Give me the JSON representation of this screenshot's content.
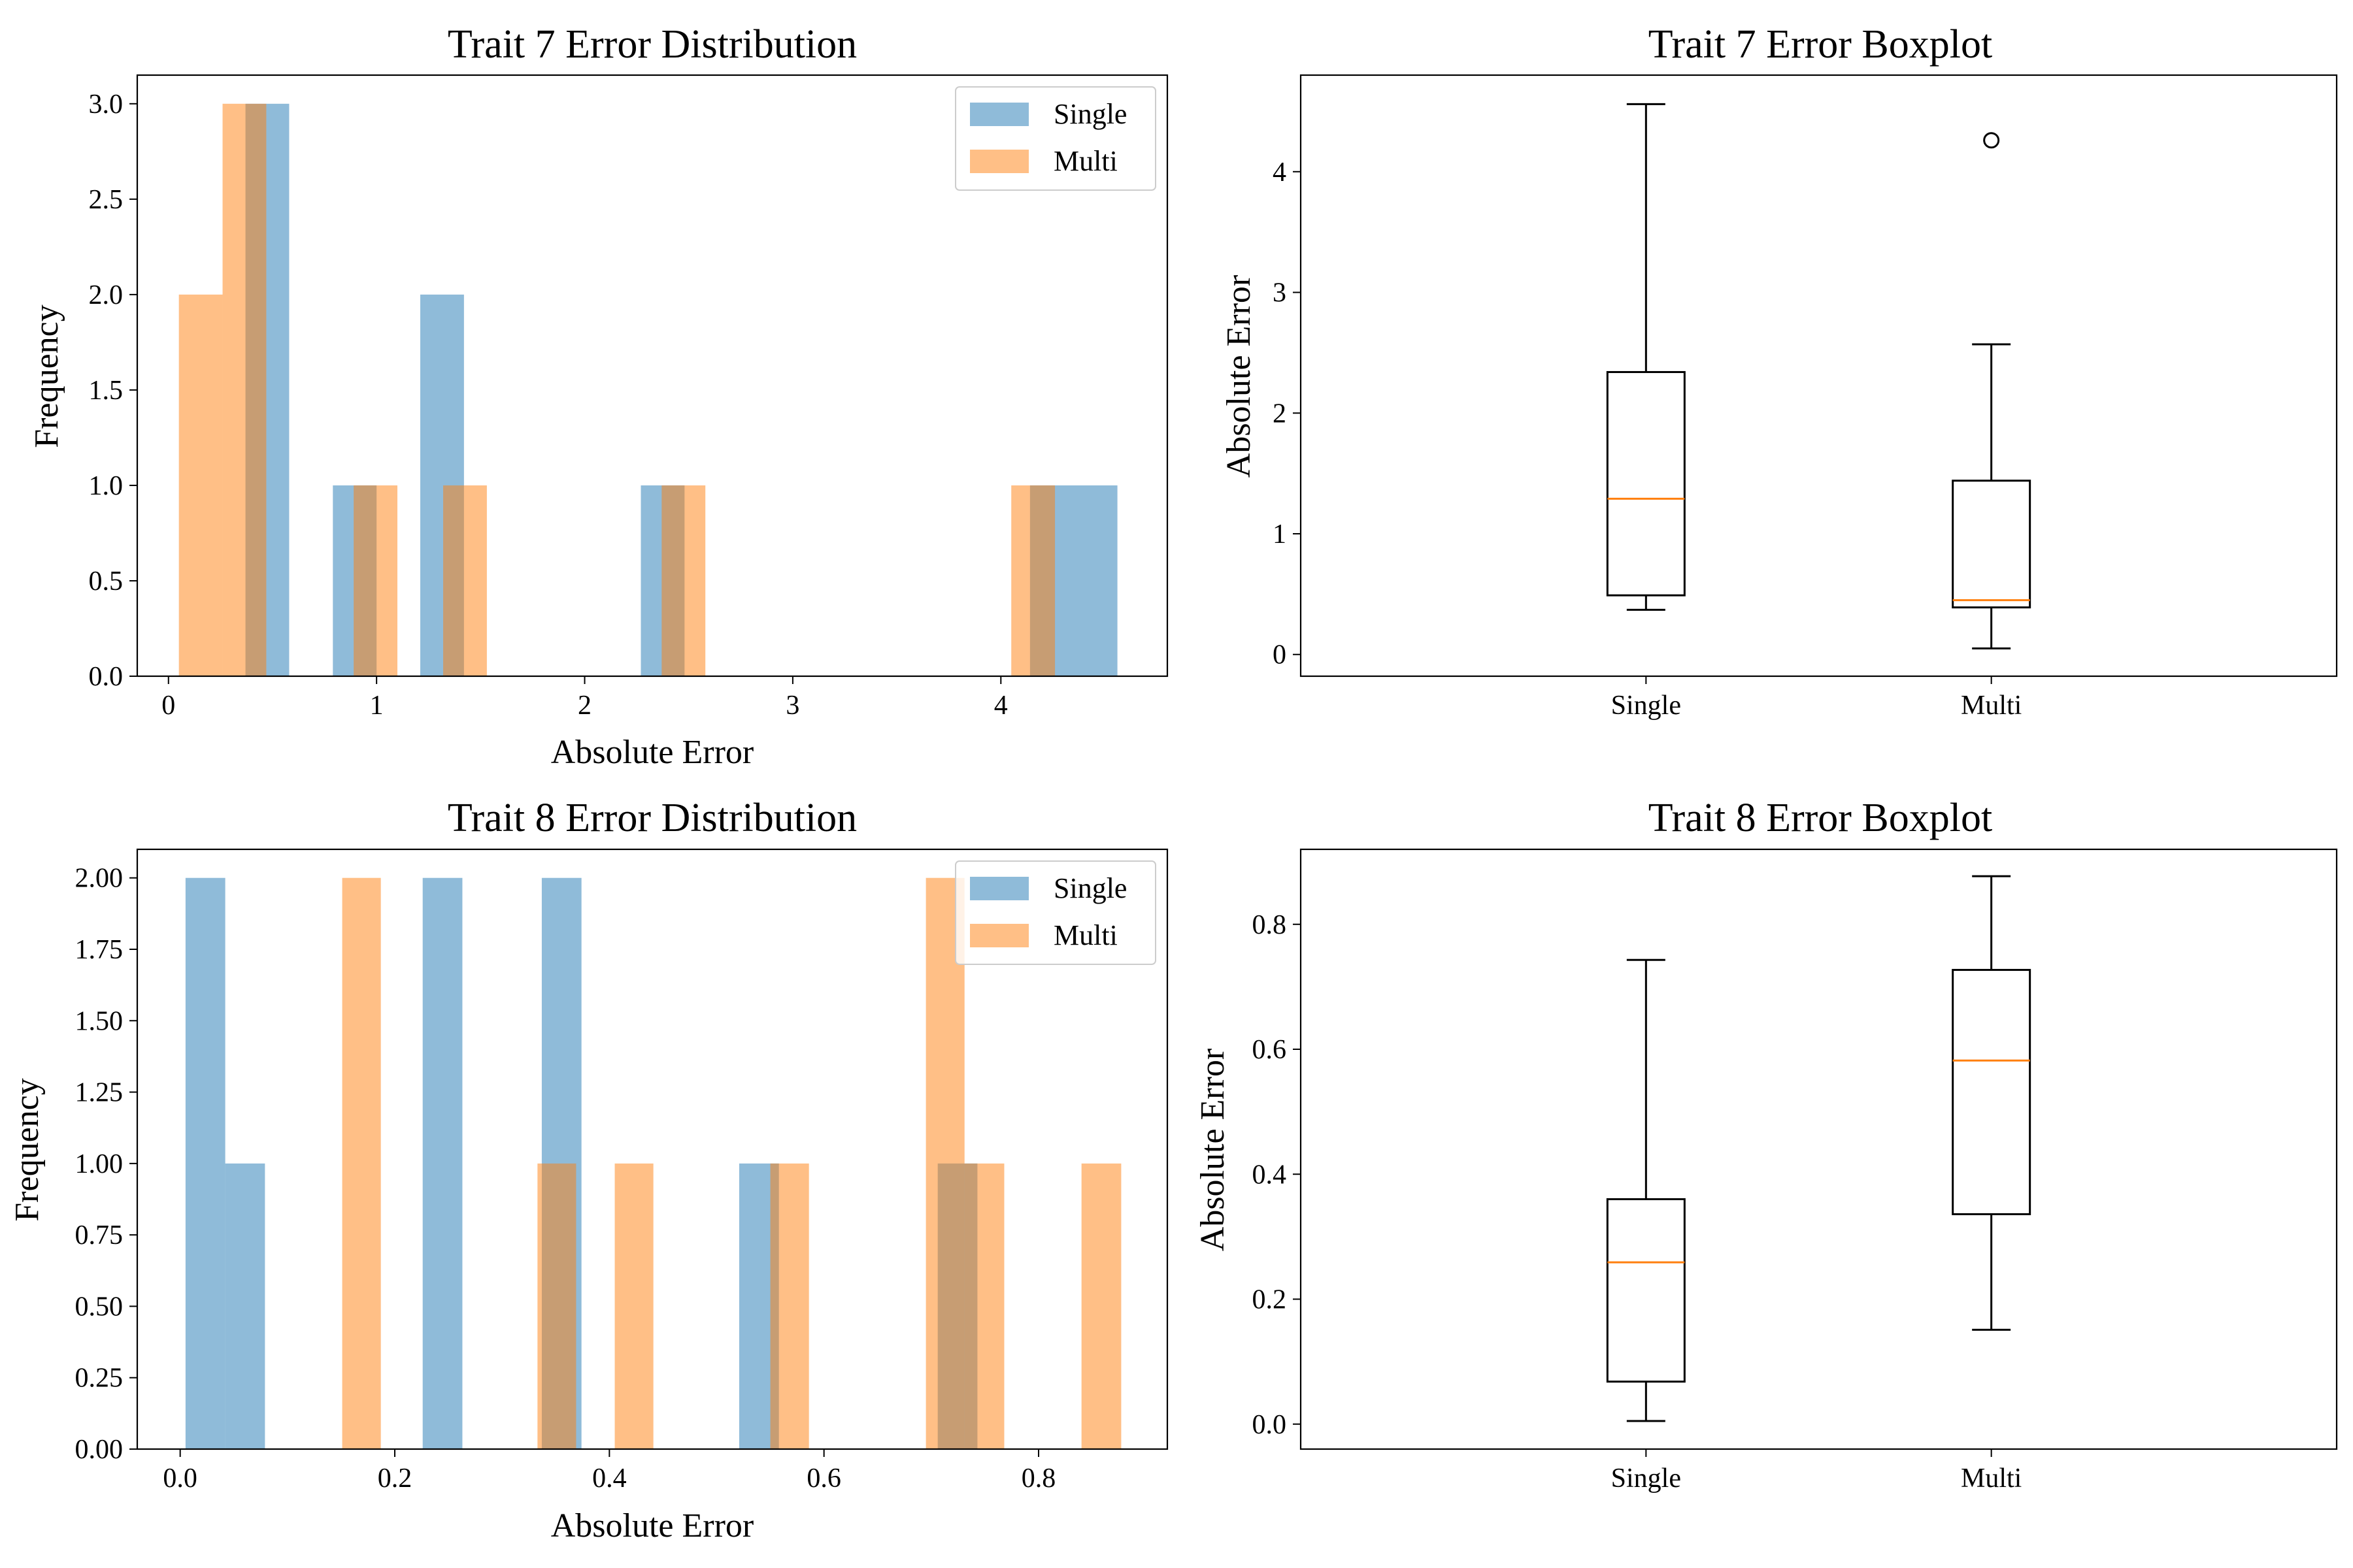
{
  "chart_data": [
    {
      "type": "histogram",
      "title": "Trait 7 Error Distribution",
      "xlabel": "Absolute Error",
      "ylabel": "Frequency",
      "xlim": [
        -0.15,
        4.8
      ],
      "ylim": [
        0,
        3.15
      ],
      "xticks": [
        0,
        1,
        2,
        3,
        4
      ],
      "xtick_labels": [
        "0",
        "1",
        "2",
        "3",
        "4"
      ],
      "yticks": [
        0,
        0.5,
        1,
        1.5,
        2,
        2.5,
        3
      ],
      "ytick_labels": [
        "0.0",
        "0.5",
        "1.0",
        "1.5",
        "2.0",
        "2.5",
        "3.0"
      ],
      "legend": "top-right",
      "series": [
        {
          "name": "Single",
          "color": "#1f77b4",
          "bins": [
            [
              0.37,
              0.58,
              3
            ],
            [
              0.79,
              1.0,
              1
            ],
            [
              1.21,
              1.42,
              2
            ],
            [
              2.27,
              2.48,
              1
            ],
            [
              4.14,
              4.56,
              1
            ]
          ]
        },
        {
          "name": "Multi",
          "color": "#ff7f0e",
          "bins": [
            [
              0.05,
              0.26,
              2
            ],
            [
              0.26,
              0.47,
              3
            ],
            [
              0.89,
              1.1,
              1
            ],
            [
              1.32,
              1.53,
              1
            ],
            [
              2.37,
              2.58,
              1
            ],
            [
              4.05,
              4.26,
              1
            ]
          ]
        }
      ]
    },
    {
      "type": "boxplot",
      "title": "Trait 7 Error Boxplot",
      "xlabel": "",
      "ylabel": "Absolute Error",
      "ylim": [
        -0.18,
        4.8
      ],
      "yticks": [
        0,
        1,
        2,
        3,
        4
      ],
      "ytick_labels": [
        "0",
        "1",
        "2",
        "3",
        "4"
      ],
      "categories": [
        "Single",
        "Multi"
      ],
      "boxes": [
        {
          "whisker_low": 0.37,
          "q1": 0.49,
          "median": 1.29,
          "q3": 2.34,
          "whisker_high": 4.56,
          "outliers": []
        },
        {
          "whisker_low": 0.05,
          "q1": 0.39,
          "median": 0.45,
          "q3": 1.44,
          "whisker_high": 2.57,
          "outliers": [
            4.26
          ]
        }
      ],
      "box_color": "#000000",
      "median_color": "#ff7f0e"
    },
    {
      "type": "histogram",
      "title": "Trait 8 Error Distribution",
      "xlabel": "Absolute Error",
      "ylabel": "Frequency",
      "xlim": [
        -0.04,
        0.92
      ],
      "ylim": [
        0,
        2.1
      ],
      "xticks": [
        0,
        0.2,
        0.4,
        0.6,
        0.8
      ],
      "xtick_labels": [
        "0.0",
        "0.2",
        "0.4",
        "0.6",
        "0.8"
      ],
      "yticks": [
        0,
        0.25,
        0.5,
        0.75,
        1,
        1.25,
        1.5,
        1.75,
        2
      ],
      "ytick_labels": [
        "0.00",
        "0.25",
        "0.50",
        "0.75",
        "1.00",
        "1.25",
        "1.50",
        "1.75",
        "2.00"
      ],
      "legend": "top-right",
      "series": [
        {
          "name": "Single",
          "color": "#1f77b4",
          "bins": [
            [
              0.005,
              0.042,
              2
            ],
            [
              0.042,
              0.079,
              1
            ],
            [
              0.226,
              0.263,
              2
            ],
            [
              0.337,
              0.374,
              2
            ],
            [
              0.521,
              0.558,
              1
            ],
            [
              0.706,
              0.743,
              1
            ]
          ]
        },
        {
          "name": "Multi",
          "color": "#ff7f0e",
          "bins": [
            [
              0.151,
              0.187,
              2
            ],
            [
              0.333,
              0.369,
              1
            ],
            [
              0.405,
              0.441,
              1
            ],
            [
              0.55,
              0.586,
              1
            ],
            [
              0.695,
              0.731,
              2
            ],
            [
              0.731,
              0.768,
              1
            ],
            [
              0.84,
              0.877,
              1
            ]
          ]
        }
      ]
    },
    {
      "type": "boxplot",
      "title": "Trait 8 Error Boxplot",
      "xlabel": "",
      "ylabel": "Absolute Error",
      "ylim": [
        -0.04,
        0.92
      ],
      "yticks": [
        0,
        0.2,
        0.4,
        0.6,
        0.8
      ],
      "ytick_labels": [
        "0.0",
        "0.2",
        "0.4",
        "0.6",
        "0.8"
      ],
      "categories": [
        "Single",
        "Multi"
      ],
      "boxes": [
        {
          "whisker_low": 0.005,
          "q1": 0.068,
          "median": 0.259,
          "q3": 0.36,
          "whisker_high": 0.743,
          "outliers": []
        },
        {
          "whisker_low": 0.151,
          "q1": 0.336,
          "median": 0.582,
          "q3": 0.727,
          "whisker_high": 0.877,
          "outliers": []
        }
      ],
      "box_color": "#000000",
      "median_color": "#ff7f0e"
    }
  ]
}
